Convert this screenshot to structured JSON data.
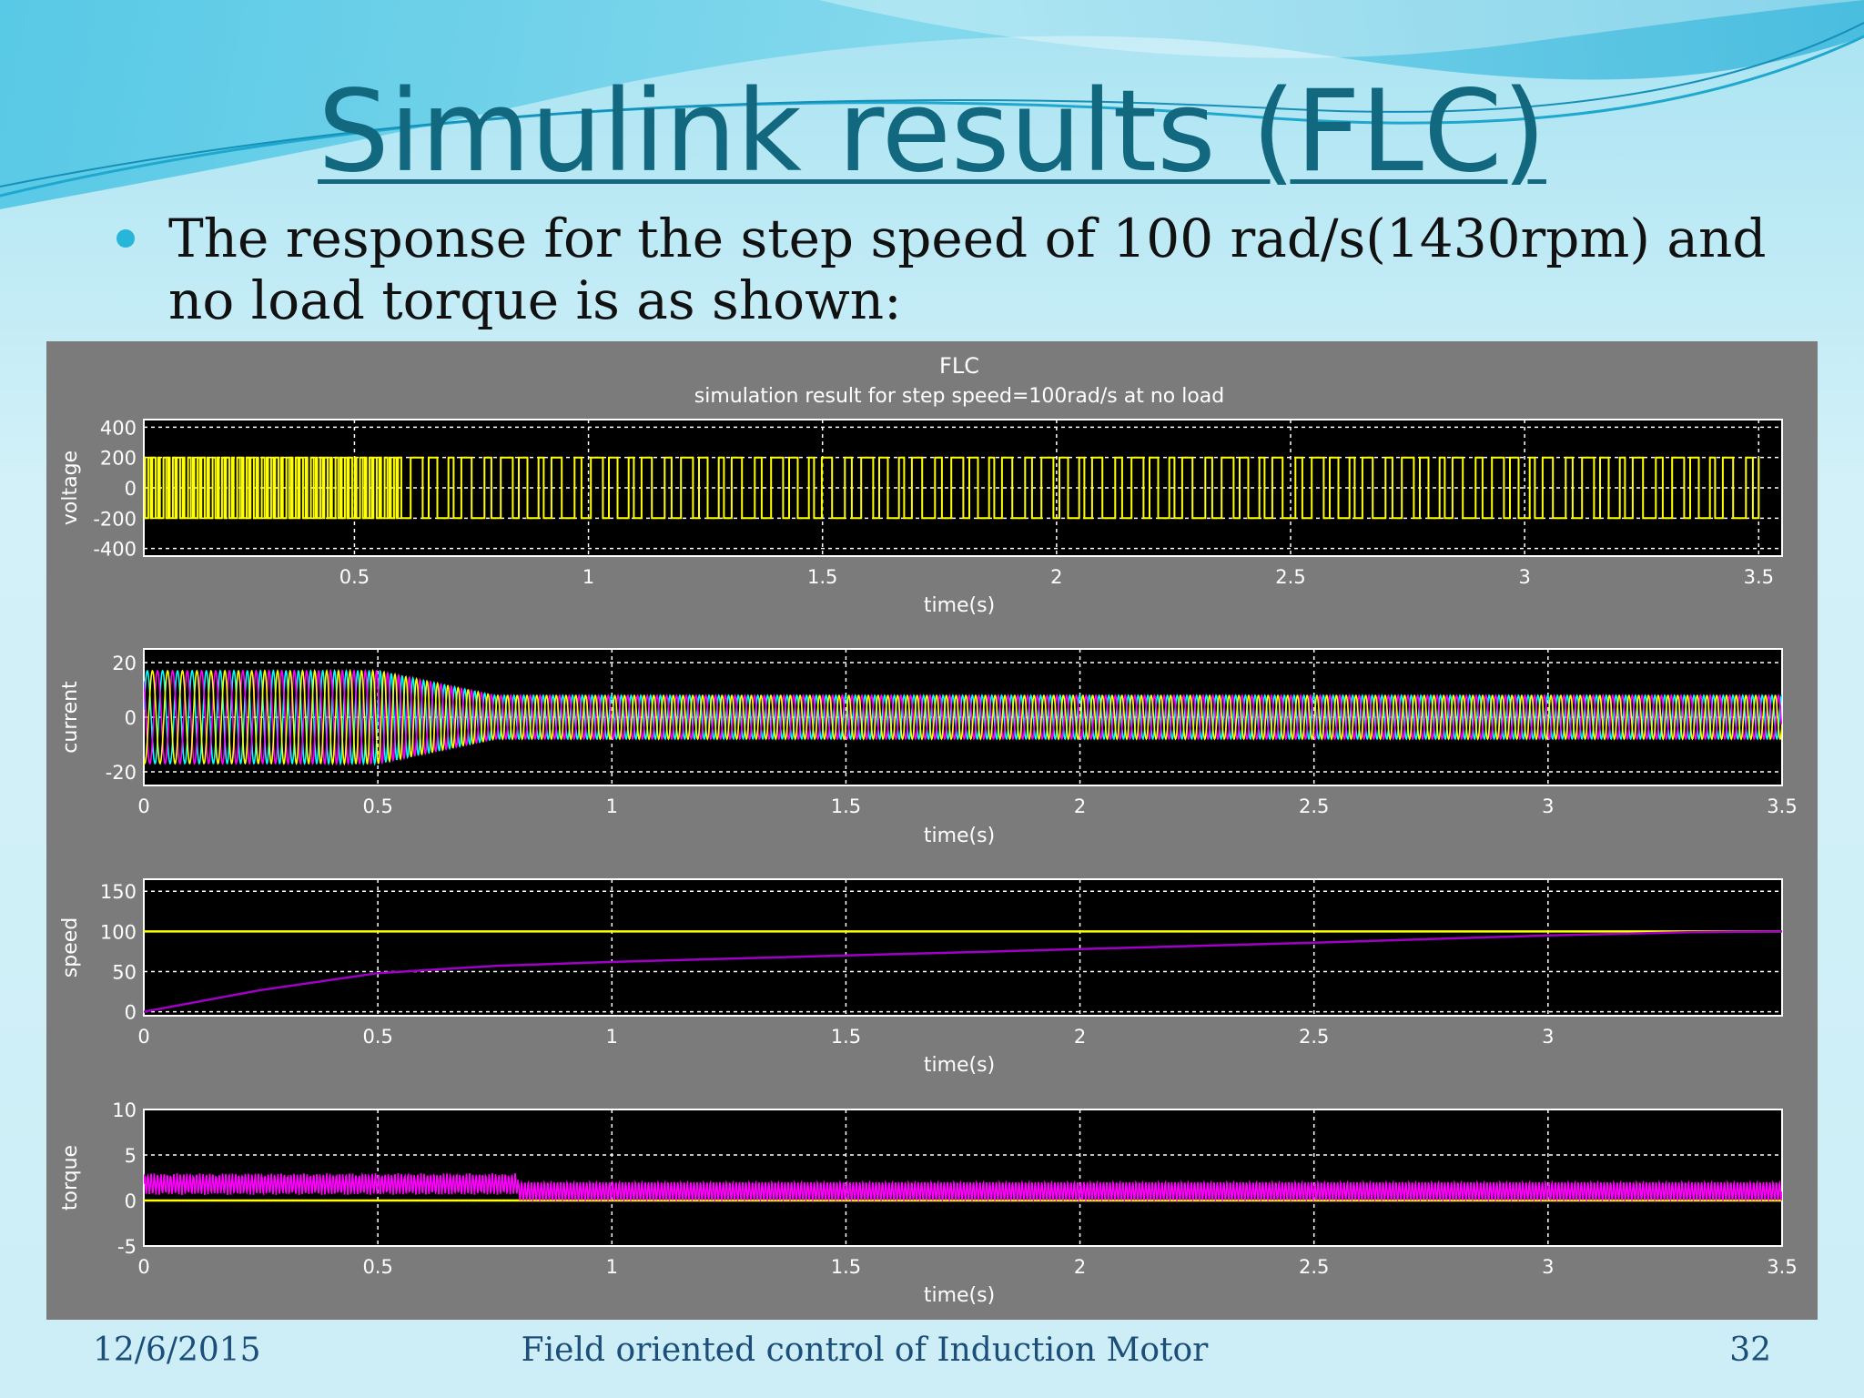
{
  "slide": {
    "title": "Simulink results (FLC)",
    "bullet": "The response for the step speed of 100 rad/s(1430rpm) and no load torque is as shown:",
    "footer_date": "12/6/2015",
    "footer_title": "Field oriented control of Induction Motor",
    "page_number": "32"
  },
  "colors": {
    "title": "#12697f",
    "figure_bg": "#7b7b7b",
    "axes_bg": "#000000",
    "voltage": "#ffff00",
    "current_phase_a": "#ff00ff",
    "current_phase_b": "#00ffff",
    "current_phase_c": "#ffff00",
    "speed": "#a000c8",
    "reference": "#ffff00",
    "torque": "#ff00ff"
  },
  "chart_data": {
    "title": "FLC",
    "subtitle": "simulation result for step speed=100rad/s at no load",
    "panels": [
      {
        "id": "voltage",
        "type": "line",
        "ylabel": "voltage",
        "xlabel": "time(s)",
        "xlim": [
          0.05,
          3.55
        ],
        "ylim": [
          -450,
          450
        ],
        "yticks": [
          -400,
          -200,
          0,
          200,
          400
        ],
        "ytick_labels": [
          "-400",
          "-200",
          "0",
          "200",
          "400"
        ],
        "xticks": [
          0.5,
          1,
          1.5,
          2,
          2.5,
          3,
          3.5
        ],
        "xtick_labels": [
          "0.5",
          "1",
          "1.5",
          "2",
          "2.5",
          "3",
          "3.5"
        ],
        "grid": true,
        "series": [
          {
            "type": "pwm",
            "color_key": "voltage",
            "amplitude": 200,
            "t_start": 0.05,
            "t_end": 3.5,
            "dense_until": 0.6,
            "dense_period": 0.005,
            "period": 0.022
          }
        ]
      },
      {
        "id": "current",
        "type": "line",
        "ylabel": "current",
        "xlabel": "time(s)",
        "xlim": [
          0,
          3.5
        ],
        "ylim": [
          -25,
          25
        ],
        "yticks": [
          -20,
          0,
          20
        ],
        "ytick_labels": [
          "-20",
          "0",
          "20"
        ],
        "xticks": [
          0,
          0.5,
          1,
          1.5,
          2,
          2.5,
          3,
          3.5
        ],
        "xtick_labels": [
          "0",
          "0.5",
          "1",
          "1.5",
          "2",
          "2.5",
          "3",
          "3.5"
        ],
        "grid": true,
        "series": [
          {
            "type": "three-phase",
            "colors": [
              "current_phase_b",
              "current_phase_a",
              "current_phase_c"
            ],
            "peak_start": 17,
            "peak_steady": 8,
            "settle_time": 0.75,
            "freq_start": 30,
            "freq_steady": 48
          }
        ]
      },
      {
        "id": "speed",
        "type": "line",
        "ylabel": "speed",
        "xlabel": "time(s)",
        "xlim": [
          0,
          3.5
        ],
        "ylim": [
          -5,
          165
        ],
        "yticks": [
          0,
          50,
          100,
          150
        ],
        "ytick_labels": [
          "0",
          "50",
          "100",
          "150"
        ],
        "xticks": [
          0,
          0.5,
          1,
          1.5,
          2,
          2.5,
          3
        ],
        "xtick_labels": [
          "0",
          "0.5",
          "1",
          "1.5",
          "2",
          "2.5",
          "3"
        ],
        "grid": true,
        "series": [
          {
            "type": "xy",
            "color_key": "reference",
            "x": [
              0,
              3.5
            ],
            "y": [
              100,
              100
            ]
          },
          {
            "type": "xy",
            "color_key": "speed",
            "x": [
              0,
              0.25,
              0.5,
              0.75,
              1.0,
              1.5,
              2.0,
              2.5,
              3.0,
              3.3,
              3.5
            ],
            "y": [
              0,
              27,
              48,
              57,
              62,
              70,
              78,
              86,
              95,
              99,
              100
            ]
          }
        ]
      },
      {
        "id": "torque",
        "type": "line",
        "ylabel": "torque",
        "xlabel": "time(s)",
        "xlim": [
          0,
          3.5
        ],
        "ylim": [
          -5,
          10
        ],
        "yticks": [
          -5,
          0,
          5,
          10
        ],
        "ytick_labels": [
          "-5",
          "0",
          "5",
          "10"
        ],
        "xticks": [
          0,
          0.5,
          1,
          1.5,
          2,
          2.5,
          3,
          3.5
        ],
        "xtick_labels": [
          "0",
          "0.5",
          "1",
          "1.5",
          "2",
          "2.5",
          "3",
          "3.5"
        ],
        "grid": true,
        "series": [
          {
            "type": "xy",
            "color_key": "reference",
            "x": [
              0,
              3.5
            ],
            "y": [
              0,
              0
            ]
          },
          {
            "type": "ripple",
            "color_key": "torque",
            "transient_mean": 1.8,
            "transient_amp": 1.2,
            "transient_end": 0.8,
            "steady_mean": 1.0,
            "steady_amp": 1.0,
            "freq": 48
          }
        ]
      }
    ]
  }
}
